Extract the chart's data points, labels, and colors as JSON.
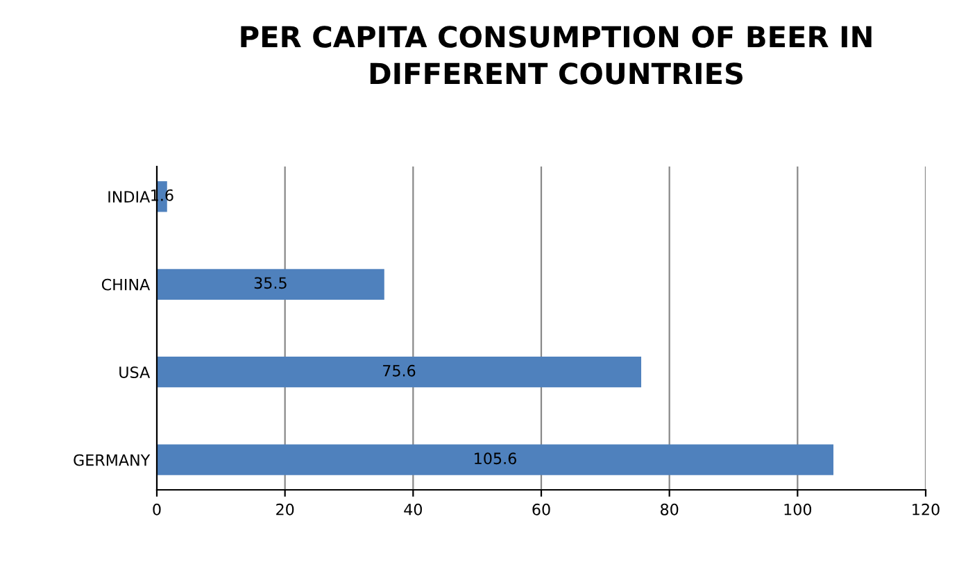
{
  "chart_data": {
    "type": "bar",
    "orientation": "horizontal",
    "title": "PER CAPITA CONSUMPTION OF BEER IN\nDIFFERENT COUNTRIES",
    "categories": [
      "INDIA",
      "CHINA",
      "USA",
      "GERMANY"
    ],
    "values": [
      1.6,
      35.5,
      75.6,
      105.6
    ],
    "color": "#4f81bd",
    "xlim": [
      0,
      120
    ],
    "xticks": [
      0,
      20,
      40,
      60,
      80,
      100,
      120
    ],
    "grid": "x",
    "data_labels": true
  }
}
